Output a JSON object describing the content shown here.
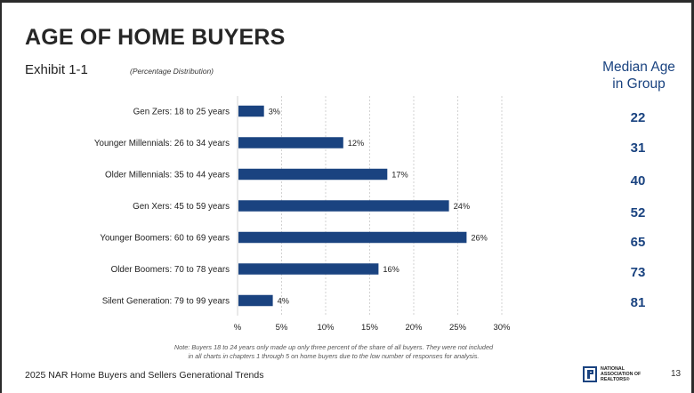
{
  "header": {
    "title": "AGE OF HOME BUYERS",
    "exhibit": "Exhibit 1-1",
    "subtitle": "(Percentage Distribution)"
  },
  "median_panel": {
    "header_line1": "Median Age",
    "header_line2": "in Group",
    "values": [
      "22",
      "31",
      "40",
      "52",
      "65",
      "73",
      "81"
    ]
  },
  "chart_data": {
    "type": "bar",
    "orientation": "horizontal",
    "title": "AGE OF HOME BUYERS",
    "categories": [
      "Gen Zers: 18 to 25 years",
      "Younger Millennials: 26 to 34 years",
      "Older Millennials: 35 to 44 years",
      "Gen Xers: 45 to 59 years",
      "Younger Boomers: 60 to 69 years",
      "Older Boomers: 70 to 78 years",
      "Silent Generation: 79 to 99 years"
    ],
    "values": [
      3,
      12,
      17,
      24,
      26,
      16,
      4
    ],
    "value_labels": [
      "3%",
      "12%",
      "17%",
      "24%",
      "26%",
      "16%",
      "4%"
    ],
    "xlim": [
      0,
      30
    ],
    "xticks": [
      0,
      5,
      10,
      15,
      20,
      25,
      30
    ],
    "xtick_labels": [
      "%",
      "5%",
      "10%",
      "15%",
      "20%",
      "25%",
      "30%"
    ],
    "grid": "vertical-dashed",
    "bar_color": "#1a4380"
  },
  "note": {
    "line1": "Note: Buyers 18 to 24 years only made up only three percent of the share of all buyers. They were not included",
    "line2": "in all charts in chapters 1 through 5 on home buyers due to the low number of responses for analysis."
  },
  "footer": {
    "text": "2025 NAR Home Buyers and Sellers Generational Trends",
    "logo_line1": "NATIONAL",
    "logo_line2": "ASSOCIATION OF",
    "logo_line3": "REALTORS®",
    "page_number": "13"
  }
}
